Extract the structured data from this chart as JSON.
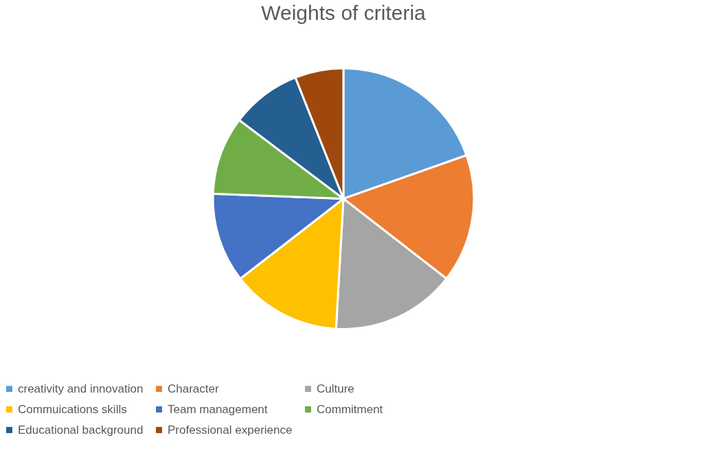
{
  "chart_data": {
    "type": "pie",
    "title": "Weights of criteria",
    "categories": [
      "creativity and innovation",
      "Character",
      "Culture",
      "Commuications skills",
      "Team management",
      "Commitment",
      "Educational background",
      "Professional experience"
    ],
    "values": [
      19.6,
      15.9,
      15.4,
      13.6,
      11.1,
      9.7,
      8.7,
      6.0
    ],
    "colors": [
      "#5b9bd5",
      "#ed7d31",
      "#a5a5a5",
      "#ffc000",
      "#4472c4",
      "#70ad47",
      "#255e91",
      "#9e480e"
    ],
    "legend": "bottom"
  }
}
